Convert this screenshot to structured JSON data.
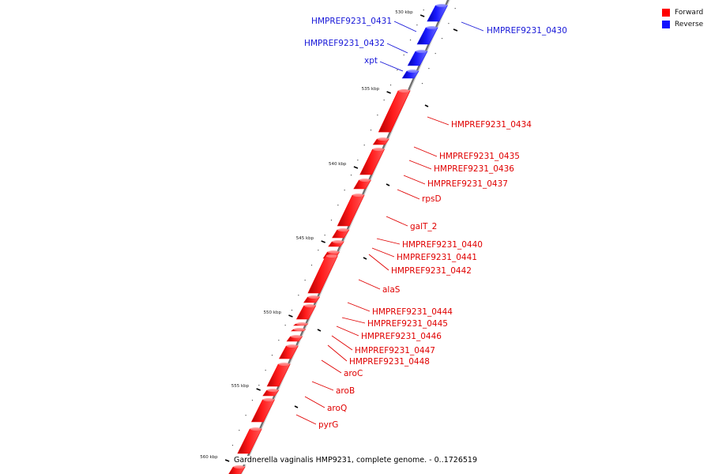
{
  "legend": {
    "forward_label": "Forward",
    "reverse_label": "Reverse",
    "forward_color": "#ff0000",
    "reverse_color": "#1010ff"
  },
  "caption": "Gardnerella vaginalis HMP9231, complete genome. - 0..1726519",
  "tick_unit": "kbp",
  "ticks_kbp": [
    530,
    535,
    540,
    545,
    550,
    555,
    560
  ],
  "genes": [
    {
      "name": "HMPREF9231_0430",
      "strand": "reverse"
    },
    {
      "name": "HMPREF9231_0431",
      "strand": "reverse"
    },
    {
      "name": "HMPREF9231_0432",
      "strand": "reverse"
    },
    {
      "name": "xpt",
      "strand": "reverse"
    },
    {
      "name": "HMPREF9231_0434",
      "strand": "forward"
    },
    {
      "name": "HMPREF9231_0435",
      "strand": "forward"
    },
    {
      "name": "HMPREF9231_0436",
      "strand": "forward"
    },
    {
      "name": "HMPREF9231_0437",
      "strand": "forward"
    },
    {
      "name": "rpsD",
      "strand": "forward"
    },
    {
      "name": "galT_2",
      "strand": "forward"
    },
    {
      "name": "HMPREF9231_0440",
      "strand": "forward"
    },
    {
      "name": "HMPREF9231_0441",
      "strand": "forward"
    },
    {
      "name": "HMPREF9231_0442",
      "strand": "forward"
    },
    {
      "name": "alaS",
      "strand": "forward"
    },
    {
      "name": "HMPREF9231_0444",
      "strand": "forward"
    },
    {
      "name": "HMPREF9231_0445",
      "strand": "forward"
    },
    {
      "name": "HMPREF9231_0446",
      "strand": "forward"
    },
    {
      "name": "HMPREF9231_0447",
      "strand": "forward"
    },
    {
      "name": "HMPREF9231_0448",
      "strand": "forward"
    },
    {
      "name": "aroC",
      "strand": "forward"
    },
    {
      "name": "aroB",
      "strand": "forward"
    },
    {
      "name": "aroQ",
      "strand": "forward"
    },
    {
      "name": "pyrG",
      "strand": "forward"
    }
  ]
}
